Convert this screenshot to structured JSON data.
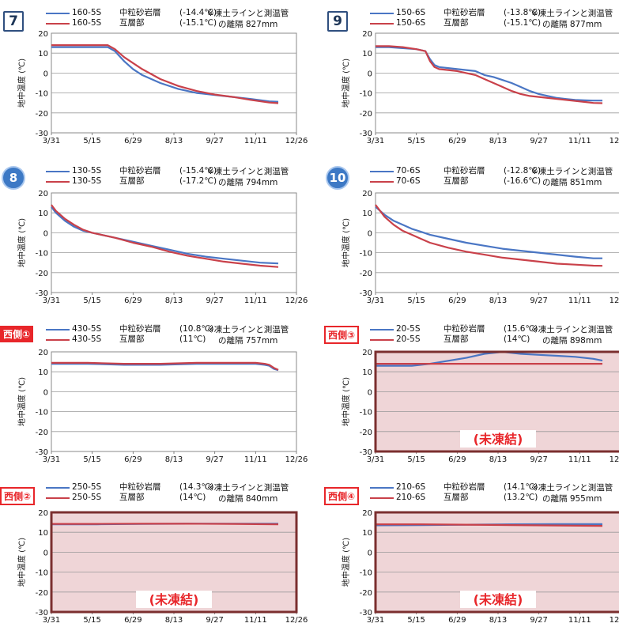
{
  "colors": {
    "blue": "#4a76c4",
    "red": "#c9414a",
    "frozenBorder": "#7b2f2f",
    "frozenFill": "#efd5d7",
    "frozenText": "#e8262a"
  },
  "axis": {
    "ylabel": "地中温度 (℃)",
    "yticks": [
      "20",
      "10",
      "0",
      "-10",
      "-20",
      "-30"
    ],
    "xticks": [
      "3/31",
      "5/15",
      "6/29",
      "8/13",
      "9/27",
      "11/11",
      "12/26"
    ]
  },
  "panels": [
    {
      "badge": "7",
      "legend": [
        {
          "code": "160-5S",
          "layer": "中粒砂岩層",
          "temp": "(-14.4℃)"
        },
        {
          "code": "160-5S",
          "layer": "互層部",
          "temp": "(-15.1℃)"
        }
      ],
      "note": {
        "line1": "※凍土ラインと測温管",
        "line2": "の離隔  827mm"
      }
    },
    {
      "badge": "9",
      "legend": [
        {
          "code": "150-6S",
          "layer": "中粒砂岩層",
          "temp": "(-13.8℃)"
        },
        {
          "code": "150-6S",
          "layer": "互層部",
          "temp": "(-15.1℃)"
        }
      ],
      "note": {
        "line1": "※凍土ラインと測温管",
        "line2": "の離隔  877mm"
      }
    },
    {
      "badge": "8",
      "legend": [
        {
          "code": "130-5S",
          "layer": "中粒砂岩層",
          "temp": "(-15.4℃)"
        },
        {
          "code": "130-5S",
          "layer": "互層部",
          "temp": "(-17.2℃)"
        }
      ],
      "note": {
        "line1": "※凍土ラインと測温管",
        "line2": "の離隔  794mm"
      }
    },
    {
      "badge": "10",
      "legend": [
        {
          "code": "70-6S",
          "layer": "中粒砂岩層",
          "temp": "(-12.8℃)"
        },
        {
          "code": "70-6S",
          "layer": "互層部",
          "temp": "(-16.6℃)"
        }
      ],
      "note": {
        "line1": "※凍土ラインと測温管",
        "line2": "の離隔  851mm"
      }
    },
    {
      "badge": "西側①",
      "legend": [
        {
          "code": "430-5S",
          "layer": "中粒砂岩層",
          "temp": "(10.8℃)"
        },
        {
          "code": "430-5S",
          "layer": "互層部",
          "temp": "(11℃)"
        }
      ],
      "note": {
        "line1": "※凍土ラインと測温管",
        "line2": "の離隔  757mm"
      }
    },
    {
      "badge": "西側③",
      "legend": [
        {
          "code": "20-5S",
          "layer": "中粒砂岩層",
          "temp": "(15.6℃)"
        },
        {
          "code": "20-5S",
          "layer": "互層部",
          "temp": "(14℃)"
        }
      ],
      "note": {
        "line1": "※凍土ラインと測温管",
        "line2": "の離隔  898mm"
      },
      "frozen_label": "(未凍結)"
    },
    {
      "badge": "西側②",
      "legend": [
        {
          "code": "250-5S",
          "layer": "中粒砂岩層",
          "temp": "(14.3℃)"
        },
        {
          "code": "250-5S",
          "layer": "互層部",
          "temp": "(14℃)"
        }
      ],
      "note": {
        "line1": "※凍土ラインと測温管",
        "line2": "の離隔  840mm"
      },
      "frozen_label": "(未凍結)"
    },
    {
      "badge": "西側④",
      "legend": [
        {
          "code": "210-6S",
          "layer": "中粒砂岩層",
          "temp": "(14.1℃)"
        },
        {
          "code": "210-6S",
          "layer": "互層部",
          "temp": "(13.2℃)"
        }
      ],
      "note": {
        "line1": "※凍土ラインと測温管",
        "line2": "の離隔  955mm"
      },
      "frozen_label": "(未凍結)"
    }
  ],
  "chart_data": [
    {
      "type": "line",
      "x": [
        "3/31",
        "5/15",
        "6/29",
        "8/13",
        "9/27",
        "11/11",
        "12/26"
      ],
      "ylim": [
        -30,
        20
      ],
      "grid": true,
      "series": [
        {
          "name": "160-5S 中粒砂岩層",
          "x": [
            0,
            20,
            40,
            50,
            62,
            70,
            80,
            90,
            100,
            120,
            140,
            160,
            180,
            200,
            220,
            240,
            250
          ],
          "y": [
            13,
            13,
            13,
            13,
            13,
            11,
            6,
            2,
            -1,
            -5,
            -8,
            -10,
            -11,
            -12,
            -13,
            -14.2,
            -14.4
          ]
        },
        {
          "name": "160-5S 互層部",
          "x": [
            0,
            20,
            40,
            50,
            62,
            70,
            80,
            90,
            100,
            120,
            140,
            160,
            180,
            200,
            220,
            240,
            250
          ],
          "y": [
            14,
            14,
            14,
            14,
            14,
            12,
            8,
            5,
            2,
            -3,
            -6.5,
            -9,
            -10.8,
            -12,
            -13.5,
            -14.8,
            -15.1
          ]
        }
      ]
    },
    {
      "type": "line",
      "x": [
        "3/31",
        "5/15",
        "6/29",
        "8/13",
        "9/27",
        "11/11",
        "12/26"
      ],
      "ylim": [
        -30,
        20
      ],
      "grid": true,
      "series": [
        {
          "name": "150-6S 中粒砂岩層",
          "x": [
            0,
            15,
            30,
            45,
            55,
            60,
            65,
            70,
            80,
            90,
            100,
            110,
            120,
            130,
            140,
            150,
            160,
            170,
            180,
            190,
            200,
            210,
            220,
            230,
            240,
            250
          ],
          "y": [
            13,
            13,
            12.5,
            12,
            11,
            7,
            4,
            3,
            2.5,
            2,
            1.5,
            1,
            -1,
            -2,
            -3.5,
            -5,
            -7,
            -9,
            -10.5,
            -11.5,
            -12.5,
            -13,
            -13.5,
            -13.7,
            -13.8,
            -13.8
          ]
        },
        {
          "name": "150-6S 互層部",
          "x": [
            0,
            15,
            30,
            45,
            55,
            60,
            65,
            70,
            80,
            90,
            100,
            110,
            120,
            130,
            140,
            150,
            160,
            170,
            180,
            190,
            200,
            210,
            220,
            230,
            240,
            250
          ],
          "y": [
            13.5,
            13.5,
            13,
            12,
            11,
            6,
            3,
            2,
            1.5,
            1,
            0,
            -1,
            -3,
            -5,
            -7,
            -9,
            -10.5,
            -11.5,
            -12,
            -12.5,
            -13,
            -13.5,
            -14,
            -14.5,
            -15,
            -15.1
          ]
        }
      ]
    },
    {
      "type": "line",
      "x": [
        "3/31",
        "5/15",
        "6/29",
        "8/13",
        "9/27",
        "11/11",
        "12/26"
      ],
      "ylim": [
        -30,
        20
      ],
      "grid": true,
      "series": [
        {
          "name": "130-5S 中粒砂岩層",
          "x": [
            0,
            5,
            15,
            25,
            35,
            45,
            55,
            70,
            90,
            110,
            130,
            150,
            170,
            190,
            210,
            230,
            250
          ],
          "y": [
            13,
            10,
            6,
            3,
            1,
            0,
            -1,
            -2.5,
            -4.5,
            -6.5,
            -8.5,
            -10.5,
            -12,
            -13,
            -14,
            -15,
            -15.4
          ]
        },
        {
          "name": "130-5S 互層部",
          "x": [
            0,
            5,
            15,
            25,
            35,
            45,
            55,
            70,
            90,
            110,
            130,
            150,
            170,
            190,
            210,
            230,
            250
          ],
          "y": [
            14,
            11,
            7,
            4,
            1.5,
            0,
            -1,
            -2.5,
            -5,
            -7,
            -9.5,
            -11.5,
            -13,
            -14.5,
            -15.5,
            -16.5,
            -17.2
          ]
        }
      ]
    },
    {
      "type": "line",
      "x": [
        "3/31",
        "5/15",
        "6/29",
        "8/13",
        "9/27",
        "11/11",
        "12/26"
      ],
      "ylim": [
        -30,
        20
      ],
      "grid": true,
      "series": [
        {
          "name": "70-6S 中粒砂岩層",
          "x": [
            0,
            10,
            20,
            30,
            40,
            50,
            60,
            80,
            100,
            120,
            140,
            160,
            180,
            200,
            220,
            240,
            250
          ],
          "y": [
            13,
            9,
            6,
            4,
            2,
            0.5,
            -1,
            -3,
            -5,
            -6.5,
            -8,
            -9,
            -10,
            -11,
            -12,
            -12.8,
            -12.8
          ]
        },
        {
          "name": "70-6S 互層部",
          "x": [
            0,
            10,
            20,
            30,
            40,
            50,
            60,
            80,
            100,
            120,
            140,
            160,
            180,
            200,
            220,
            240,
            250
          ],
          "y": [
            14,
            8,
            4,
            1,
            -1,
            -3,
            -5,
            -7.5,
            -9.5,
            -11,
            -12.5,
            -13.5,
            -14.5,
            -15.5,
            -16,
            -16.5,
            -16.6
          ]
        }
      ]
    },
    {
      "type": "line",
      "x": [
        "3/31",
        "5/15",
        "6/29",
        "8/13",
        "9/27",
        "11/11",
        "12/26"
      ],
      "ylim": [
        -30,
        20
      ],
      "grid": true,
      "series": [
        {
          "name": "430-5S 中粒砂岩層",
          "x": [
            0,
            40,
            80,
            120,
            160,
            200,
            225,
            235,
            240,
            245,
            250
          ],
          "y": [
            14,
            14,
            13.5,
            13.5,
            14,
            14,
            14,
            13.5,
            13,
            11.5,
            10.8
          ]
        },
        {
          "name": "430-5S 互層部",
          "x": [
            0,
            40,
            80,
            120,
            160,
            200,
            225,
            235,
            240,
            245,
            250
          ],
          "y": [
            14.5,
            14.5,
            14,
            14,
            14.5,
            14.5,
            14.5,
            14,
            13.5,
            12,
            11
          ]
        }
      ]
    },
    {
      "type": "line",
      "x": [
        "3/31",
        "5/15",
        "6/29",
        "8/13",
        "9/27",
        "11/11",
        "12/26"
      ],
      "ylim": [
        -30,
        20
      ],
      "grid": true,
      "series": [
        {
          "name": "20-5S 中粒砂岩層",
          "x": [
            0,
            20,
            40,
            60,
            80,
            100,
            120,
            140,
            160,
            180,
            200,
            220,
            240,
            250
          ],
          "y": [
            13,
            13,
            13,
            14,
            15.5,
            17,
            19,
            20,
            19,
            18.5,
            18,
            17.5,
            16.5,
            15.6
          ]
        },
        {
          "name": "20-5S 互層部",
          "x": [
            0,
            20,
            40,
            60,
            80,
            100,
            120,
            140,
            160,
            180,
            200,
            220,
            240,
            250
          ],
          "y": [
            14,
            14,
            14,
            14,
            14,
            14,
            14,
            14,
            14,
            14,
            14,
            14,
            14,
            14
          ]
        }
      ]
    },
    {
      "type": "line",
      "x": [
        "3/31",
        "5/15",
        "6/29",
        "8/13",
        "9/27",
        "11/11",
        "12/26"
      ],
      "ylim": [
        -30,
        20
      ],
      "grid": true,
      "series": [
        {
          "name": "250-5S 中粒砂岩層",
          "x": [
            0,
            50,
            100,
            150,
            200,
            250
          ],
          "y": [
            14,
            14,
            14.2,
            14.3,
            14.3,
            14.3
          ]
        },
        {
          "name": "250-5S 互層部",
          "x": [
            0,
            50,
            100,
            150,
            200,
            250
          ],
          "y": [
            14.2,
            14.2,
            14.3,
            14.3,
            14.2,
            14
          ]
        }
      ]
    },
    {
      "type": "line",
      "x": [
        "3/31",
        "5/15",
        "6/29",
        "8/13",
        "9/27",
        "11/11",
        "12/26"
      ],
      "ylim": [
        -30,
        20
      ],
      "grid": true,
      "series": [
        {
          "name": "210-6S 中粒砂岩層",
          "x": [
            0,
            50,
            100,
            150,
            200,
            250
          ],
          "y": [
            13.5,
            13.6,
            13.8,
            14,
            14.1,
            14.1
          ]
        },
        {
          "name": "210-6S 互層部",
          "x": [
            0,
            50,
            100,
            150,
            200,
            250
          ],
          "y": [
            14,
            14,
            13.8,
            13.6,
            13.4,
            13.2
          ]
        }
      ]
    }
  ]
}
